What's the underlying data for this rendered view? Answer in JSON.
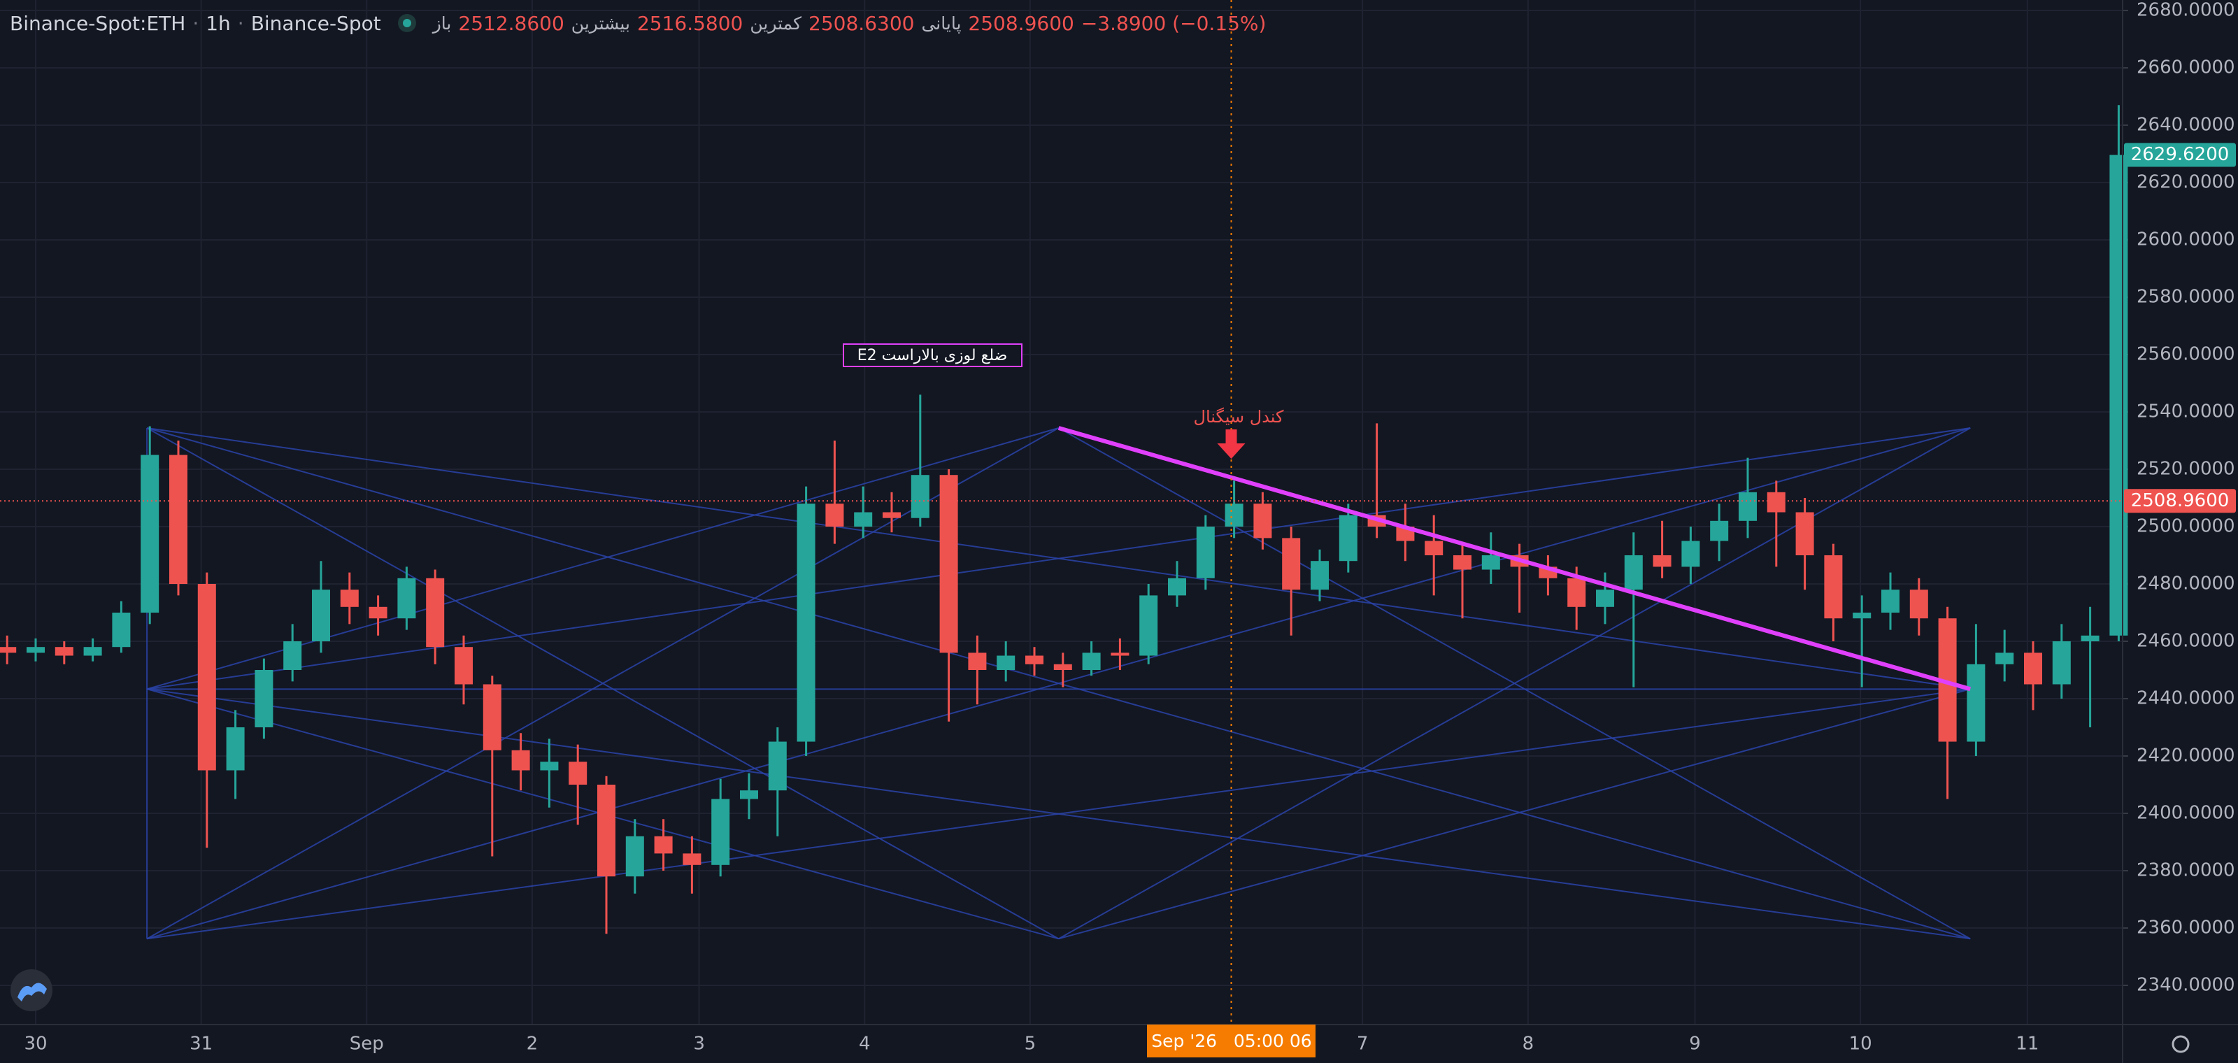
{
  "header": {
    "symbol": "Binance-Spot:ETH",
    "interval": "1h",
    "exchange": "Binance-Spot",
    "open_label": "باز",
    "open": "2512.8600",
    "high_label": "بیشترین",
    "high": "2516.5800",
    "low_label": "کمترین",
    "low": "2508.6300",
    "close_label": "پایانی",
    "close": "2508.9600",
    "change": "−3.8900 (−0.15%)"
  },
  "chart_data": {
    "type": "candlestick",
    "ylim": [
      2326.34,
      2683.66
    ],
    "yticks": [
      {
        "value": 2340,
        "label": "2340.0000"
      },
      {
        "value": 2360,
        "label": "2360.0000"
      },
      {
        "value": 2380,
        "label": "2380.0000"
      },
      {
        "value": 2400,
        "label": "2400.0000"
      },
      {
        "value": 2420,
        "label": "2420.0000"
      },
      {
        "value": 2440,
        "label": "2440.0000"
      },
      {
        "value": 2460,
        "label": "2460.0000"
      },
      {
        "value": 2480,
        "label": "2480.0000"
      },
      {
        "value": 2500,
        "label": "2500.0000"
      },
      {
        "value": 2520,
        "label": "2520.0000"
      },
      {
        "value": 2540,
        "label": "2540.0000"
      },
      {
        "value": 2560,
        "label": "2560.0000"
      },
      {
        "value": 2580,
        "label": "2580.0000"
      },
      {
        "value": 2600,
        "label": "2600.0000"
      },
      {
        "value": 2620,
        "label": "2620.0000"
      },
      {
        "value": 2640,
        "label": "2640.0000"
      },
      {
        "value": 2660,
        "label": "2660.0000"
      },
      {
        "value": 2680,
        "label": "2680.0000"
      }
    ],
    "grid": true,
    "up_color": "#26a69a",
    "down_color": "#ef5350",
    "x_labels": [
      "30",
      "31",
      "Sep",
      "2",
      "3",
      "4",
      "5",
      "7",
      "8",
      "9",
      "10",
      "11"
    ],
    "crosshair_label": "Sep '26   05:00 06",
    "last_price": {
      "value": 2629.62,
      "label": "2629.6200"
    },
    "reference_price": {
      "value": 2508.96,
      "label": "2508.9600"
    },
    "annotations": {
      "pattern_label": "E2 ضلع لوزی بالاراست",
      "signal_label": "کندل سیگنال"
    },
    "candles": [
      [
        2458,
        2462,
        2452,
        2456
      ],
      [
        2456,
        2461,
        2453,
        2458
      ],
      [
        2458,
        2460,
        2452,
        2455
      ],
      [
        2455,
        2461,
        2453,
        2458
      ],
      [
        2458,
        2474,
        2456,
        2470
      ],
      [
        2470,
        2535,
        2466,
        2525
      ],
      [
        2525,
        2530,
        2476,
        2480
      ],
      [
        2480,
        2484,
        2388,
        2415
      ],
      [
        2415,
        2436,
        2405,
        2430
      ],
      [
        2430,
        2454,
        2426,
        2450
      ],
      [
        2450,
        2466,
        2446,
        2460
      ],
      [
        2460,
        2488,
        2456,
        2478
      ],
      [
        2478,
        2484,
        2466,
        2472
      ],
      [
        2472,
        2476,
        2462,
        2468
      ],
      [
        2468,
        2486,
        2464,
        2482
      ],
      [
        2482,
        2485,
        2452,
        2458
      ],
      [
        2458,
        2462,
        2438,
        2445
      ],
      [
        2445,
        2448,
        2385,
        2422
      ],
      [
        2422,
        2428,
        2408,
        2415
      ],
      [
        2415,
        2426,
        2402,
        2418
      ],
      [
        2418,
        2424,
        2396,
        2410
      ],
      [
        2410,
        2413,
        2358,
        2378
      ],
      [
        2378,
        2398,
        2372,
        2392
      ],
      [
        2392,
        2398,
        2380,
        2386
      ],
      [
        2386,
        2392,
        2372,
        2382
      ],
      [
        2382,
        2412,
        2378,
        2405
      ],
      [
        2405,
        2414,
        2398,
        2408
      ],
      [
        2408,
        2430,
        2392,
        2425
      ],
      [
        2425,
        2514,
        2420,
        2508
      ],
      [
        2508,
        2530,
        2494,
        2500
      ],
      [
        2500,
        2514,
        2496,
        2505
      ],
      [
        2505,
        2512,
        2498,
        2503
      ],
      [
        2503,
        2546,
        2500,
        2518
      ],
      [
        2518,
        2520,
        2432,
        2456
      ],
      [
        2456,
        2462,
        2438,
        2450
      ],
      [
        2450,
        2460,
        2446,
        2455
      ],
      [
        2455,
        2458,
        2448,
        2452
      ],
      [
        2452,
        2456,
        2444,
        2450
      ],
      [
        2450,
        2460,
        2448,
        2456
      ],
      [
        2456,
        2461,
        2450,
        2455
      ],
      [
        2455,
        2480,
        2452,
        2476
      ],
      [
        2476,
        2488,
        2472,
        2482
      ],
      [
        2482,
        2504,
        2478,
        2500
      ],
      [
        2500,
        2516,
        2496,
        2508
      ],
      [
        2508,
        2512,
        2492,
        2496
      ],
      [
        2496,
        2500,
        2462,
        2478
      ],
      [
        2478,
        2492,
        2474,
        2488
      ],
      [
        2488,
        2508,
        2484,
        2504
      ],
      [
        2504,
        2536,
        2496,
        2500
      ],
      [
        2500,
        2508,
        2488,
        2495
      ],
      [
        2495,
        2504,
        2476,
        2490
      ],
      [
        2490,
        2494,
        2468,
        2485
      ],
      [
        2485,
        2498,
        2480,
        2490
      ],
      [
        2490,
        2494,
        2470,
        2486
      ],
      [
        2486,
        2490,
        2476,
        2482
      ],
      [
        2482,
        2486,
        2464,
        2472
      ],
      [
        2472,
        2484,
        2466,
        2478
      ],
      [
        2478,
        2498,
        2444,
        2490
      ],
      [
        2490,
        2502,
        2482,
        2486
      ],
      [
        2486,
        2500,
        2480,
        2495
      ],
      [
        2495,
        2508,
        2488,
        2502
      ],
      [
        2502,
        2524,
        2496,
        2512
      ],
      [
        2512,
        2516,
        2486,
        2505
      ],
      [
        2505,
        2510,
        2478,
        2490
      ],
      [
        2490,
        2494,
        2460,
        2468
      ],
      [
        2468,
        2476,
        2444,
        2470
      ],
      [
        2470,
        2484,
        2464,
        2478
      ],
      [
        2478,
        2482,
        2462,
        2468
      ],
      [
        2468,
        2472,
        2405,
        2425
      ],
      [
        2425,
        2466,
        2420,
        2452
      ],
      [
        2452,
        2464,
        2446,
        2456
      ],
      [
        2456,
        2460,
        2436,
        2445
      ],
      [
        2445,
        2466,
        2440,
        2460
      ],
      [
        2460,
        2472,
        2430,
        2462
      ],
      [
        2462,
        2647,
        2460,
        2629.62
      ]
    ]
  }
}
